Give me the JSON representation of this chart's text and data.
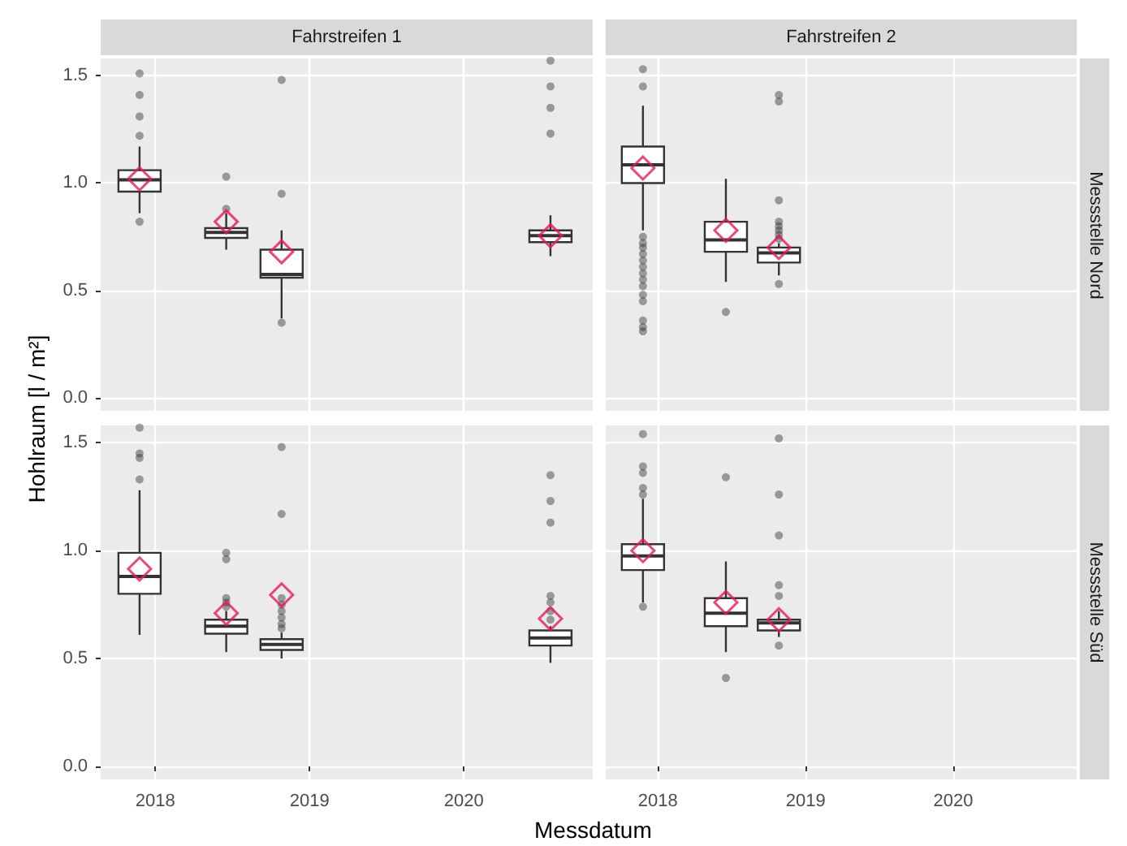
{
  "chart_data": [
    {
      "type": "box",
      "title": "Fahrstreifen 1",
      "ylabel": "Hohlraum [l / m²]",
      "x": [
        "2017-11-25",
        "2018-06-18",
        "2018-10-27",
        "2020-07-24"
      ],
      "xlim": [
        "2017-08-25",
        "2020-11-01"
      ],
      "xticks": [
        "2018",
        "2019",
        "2020"
      ],
      "ylim": [
        -0.06,
        1.58
      ],
      "yticks": [
        {
          "value": 0,
          "label": "0.0"
        },
        {
          "value": 0.5,
          "label": "0.5"
        },
        {
          "value": 1,
          "label": "1.0"
        },
        {
          "value": 1.5,
          "label": "1.5"
        }
      ],
      "grid": true,
      "tick_labels": "y",
      "series": [
        {
          "type": "box",
          "color": "#333333",
          "boxes": [
            {
              "low": 0.86,
              "q1": 0.96,
              "median": 1.015,
              "q3": 1.06,
              "high": 1.17,
              "outliers": [
                0.82,
                1.22,
                1.31,
                1.41,
                1.51
              ]
            },
            {
              "low": 0.69,
              "q1": 0.745,
              "median": 0.77,
              "q3": 0.79,
              "high": 0.86,
              "outliers": [
                0.88,
                1.03
              ]
            },
            {
              "low": 0.37,
              "q1": 0.56,
              "median": 0.575,
              "q3": 0.69,
              "high": 0.78,
              "outliers": [
                0.35,
                0.95,
                1.48
              ]
            },
            {
              "low": 0.66,
              "q1": 0.725,
              "median": 0.755,
              "q3": 0.78,
              "high": 0.85,
              "outliers": [
                1.23,
                1.35,
                1.45,
                1.57
              ]
            }
          ]
        },
        {
          "type": "scatter",
          "color": "#e8175d",
          "marker": "diamond",
          "values": [
            1.02,
            0.82,
            0.68,
            0.755
          ]
        }
      ]
    },
    {
      "type": "box",
      "title": "Fahrstreifen 2",
      "annotations": [
        "Messstelle Nord"
      ],
      "x": [
        "2017-11-25",
        "2018-06-18",
        "2018-10-27"
      ],
      "xlim": [
        "2017-08-25",
        "2020-11-01"
      ],
      "xticks": [
        "2018",
        "2019",
        "2020"
      ],
      "ylim": [
        -0.06,
        1.58
      ],
      "yticks": [
        0,
        0.5,
        1,
        1.5
      ],
      "grid": true,
      "tick_labels": false,
      "series": [
        {
          "type": "box",
          "color": "#333333",
          "boxes": [
            {
              "low": 0.78,
              "q1": 1.0,
              "median": 1.085,
              "q3": 1.17,
              "high": 1.36,
              "outliers": [
                1.53,
                1.45,
                0.75,
                0.72,
                0.7,
                0.67,
                0.64,
                0.61,
                0.58,
                0.55,
                0.52,
                0.48,
                0.45,
                0.36,
                0.33,
                0.31
              ]
            },
            {
              "low": 0.54,
              "q1": 0.68,
              "median": 0.735,
              "q3": 0.82,
              "high": 1.02,
              "outliers": [
                0.4
              ]
            },
            {
              "low": 0.57,
              "q1": 0.63,
              "median": 0.675,
              "q3": 0.7,
              "high": 0.72,
              "outliers": [
                0.53,
                0.74,
                0.76,
                0.78,
                0.8,
                0.82,
                0.92,
                1.38,
                1.41
              ]
            }
          ]
        },
        {
          "type": "scatter",
          "color": "#e8175d",
          "marker": "diamond",
          "values": [
            1.07,
            0.78,
            0.7
          ]
        }
      ]
    },
    {
      "type": "box",
      "xlabel": "Messdatum",
      "x": [
        "2017-11-25",
        "2018-06-18",
        "2018-10-27",
        "2020-07-24"
      ],
      "xlim": [
        "2017-08-25",
        "2020-11-01"
      ],
      "xticks": [
        "2018",
        "2019",
        "2020"
      ],
      "ylim": [
        -0.06,
        1.58
      ],
      "yticks": [
        {
          "value": 0,
          "label": "0.0"
        },
        {
          "value": 0.5,
          "label": "0.5"
        },
        {
          "value": 1,
          "label": "1.0"
        },
        {
          "value": 1.5,
          "label": "1.5"
        }
      ],
      "grid": true,
      "series": [
        {
          "type": "box",
          "color": "#333333",
          "boxes": [
            {
              "low": 0.61,
              "q1": 0.8,
              "median": 0.88,
              "q3": 0.99,
              "high": 1.28,
              "outliers": [
                1.33,
                1.43,
                1.45,
                1.57
              ]
            },
            {
              "low": 0.53,
              "q1": 0.615,
              "median": 0.65,
              "q3": 0.68,
              "high": 0.72,
              "outliers": [
                0.74,
                0.76,
                0.78,
                0.96,
                0.99
              ]
            },
            {
              "low": 0.5,
              "q1": 0.54,
              "median": 0.565,
              "q3": 0.59,
              "high": 0.62,
              "outliers": [
                0.64,
                0.66,
                0.69,
                0.72,
                0.75,
                0.78,
                1.17,
                1.48
              ]
            },
            {
              "low": 0.48,
              "q1": 0.56,
              "median": 0.595,
              "q3": 0.63,
              "high": 0.65,
              "outliers": [
                0.68,
                0.72,
                0.76,
                0.79,
                1.13,
                1.23,
                1.35
              ]
            }
          ]
        },
        {
          "type": "scatter",
          "color": "#e8175d",
          "marker": "diamond",
          "values": [
            0.915,
            0.71,
            0.795,
            0.685
          ]
        }
      ]
    },
    {
      "type": "box",
      "annotations": [
        "Messstelle Süd"
      ],
      "x": [
        "2017-11-25",
        "2018-06-18",
        "2018-10-27"
      ],
      "xlim": [
        "2017-08-25",
        "2020-11-01"
      ],
      "xticks": [
        "2018",
        "2019",
        "2020"
      ],
      "ylim": [
        -0.06,
        1.58
      ],
      "yticks": [
        0,
        0.5,
        1,
        1.5
      ],
      "grid": true,
      "tick_labels": "x",
      "series": [
        {
          "type": "box",
          "color": "#333333",
          "boxes": [
            {
              "low": 0.76,
              "q1": 0.91,
              "median": 0.975,
              "q3": 1.03,
              "high": 1.24,
              "outliers": [
                0.74,
                1.26,
                1.29,
                1.36,
                1.39,
                1.54
              ]
            },
            {
              "low": 0.53,
              "q1": 0.65,
              "median": 0.71,
              "q3": 0.78,
              "high": 0.95,
              "outliers": [
                0.41,
                1.34
              ]
            },
            {
              "low": 0.6,
              "q1": 0.63,
              "median": 0.665,
              "q3": 0.68,
              "high": 0.72,
              "outliers": [
                0.56,
                0.79,
                0.84,
                1.07,
                1.26,
                1.52
              ]
            }
          ]
        },
        {
          "type": "scatter",
          "color": "#e8175d",
          "marker": "diamond",
          "values": [
            1.0,
            0.76,
            0.68
          ]
        }
      ]
    }
  ]
}
